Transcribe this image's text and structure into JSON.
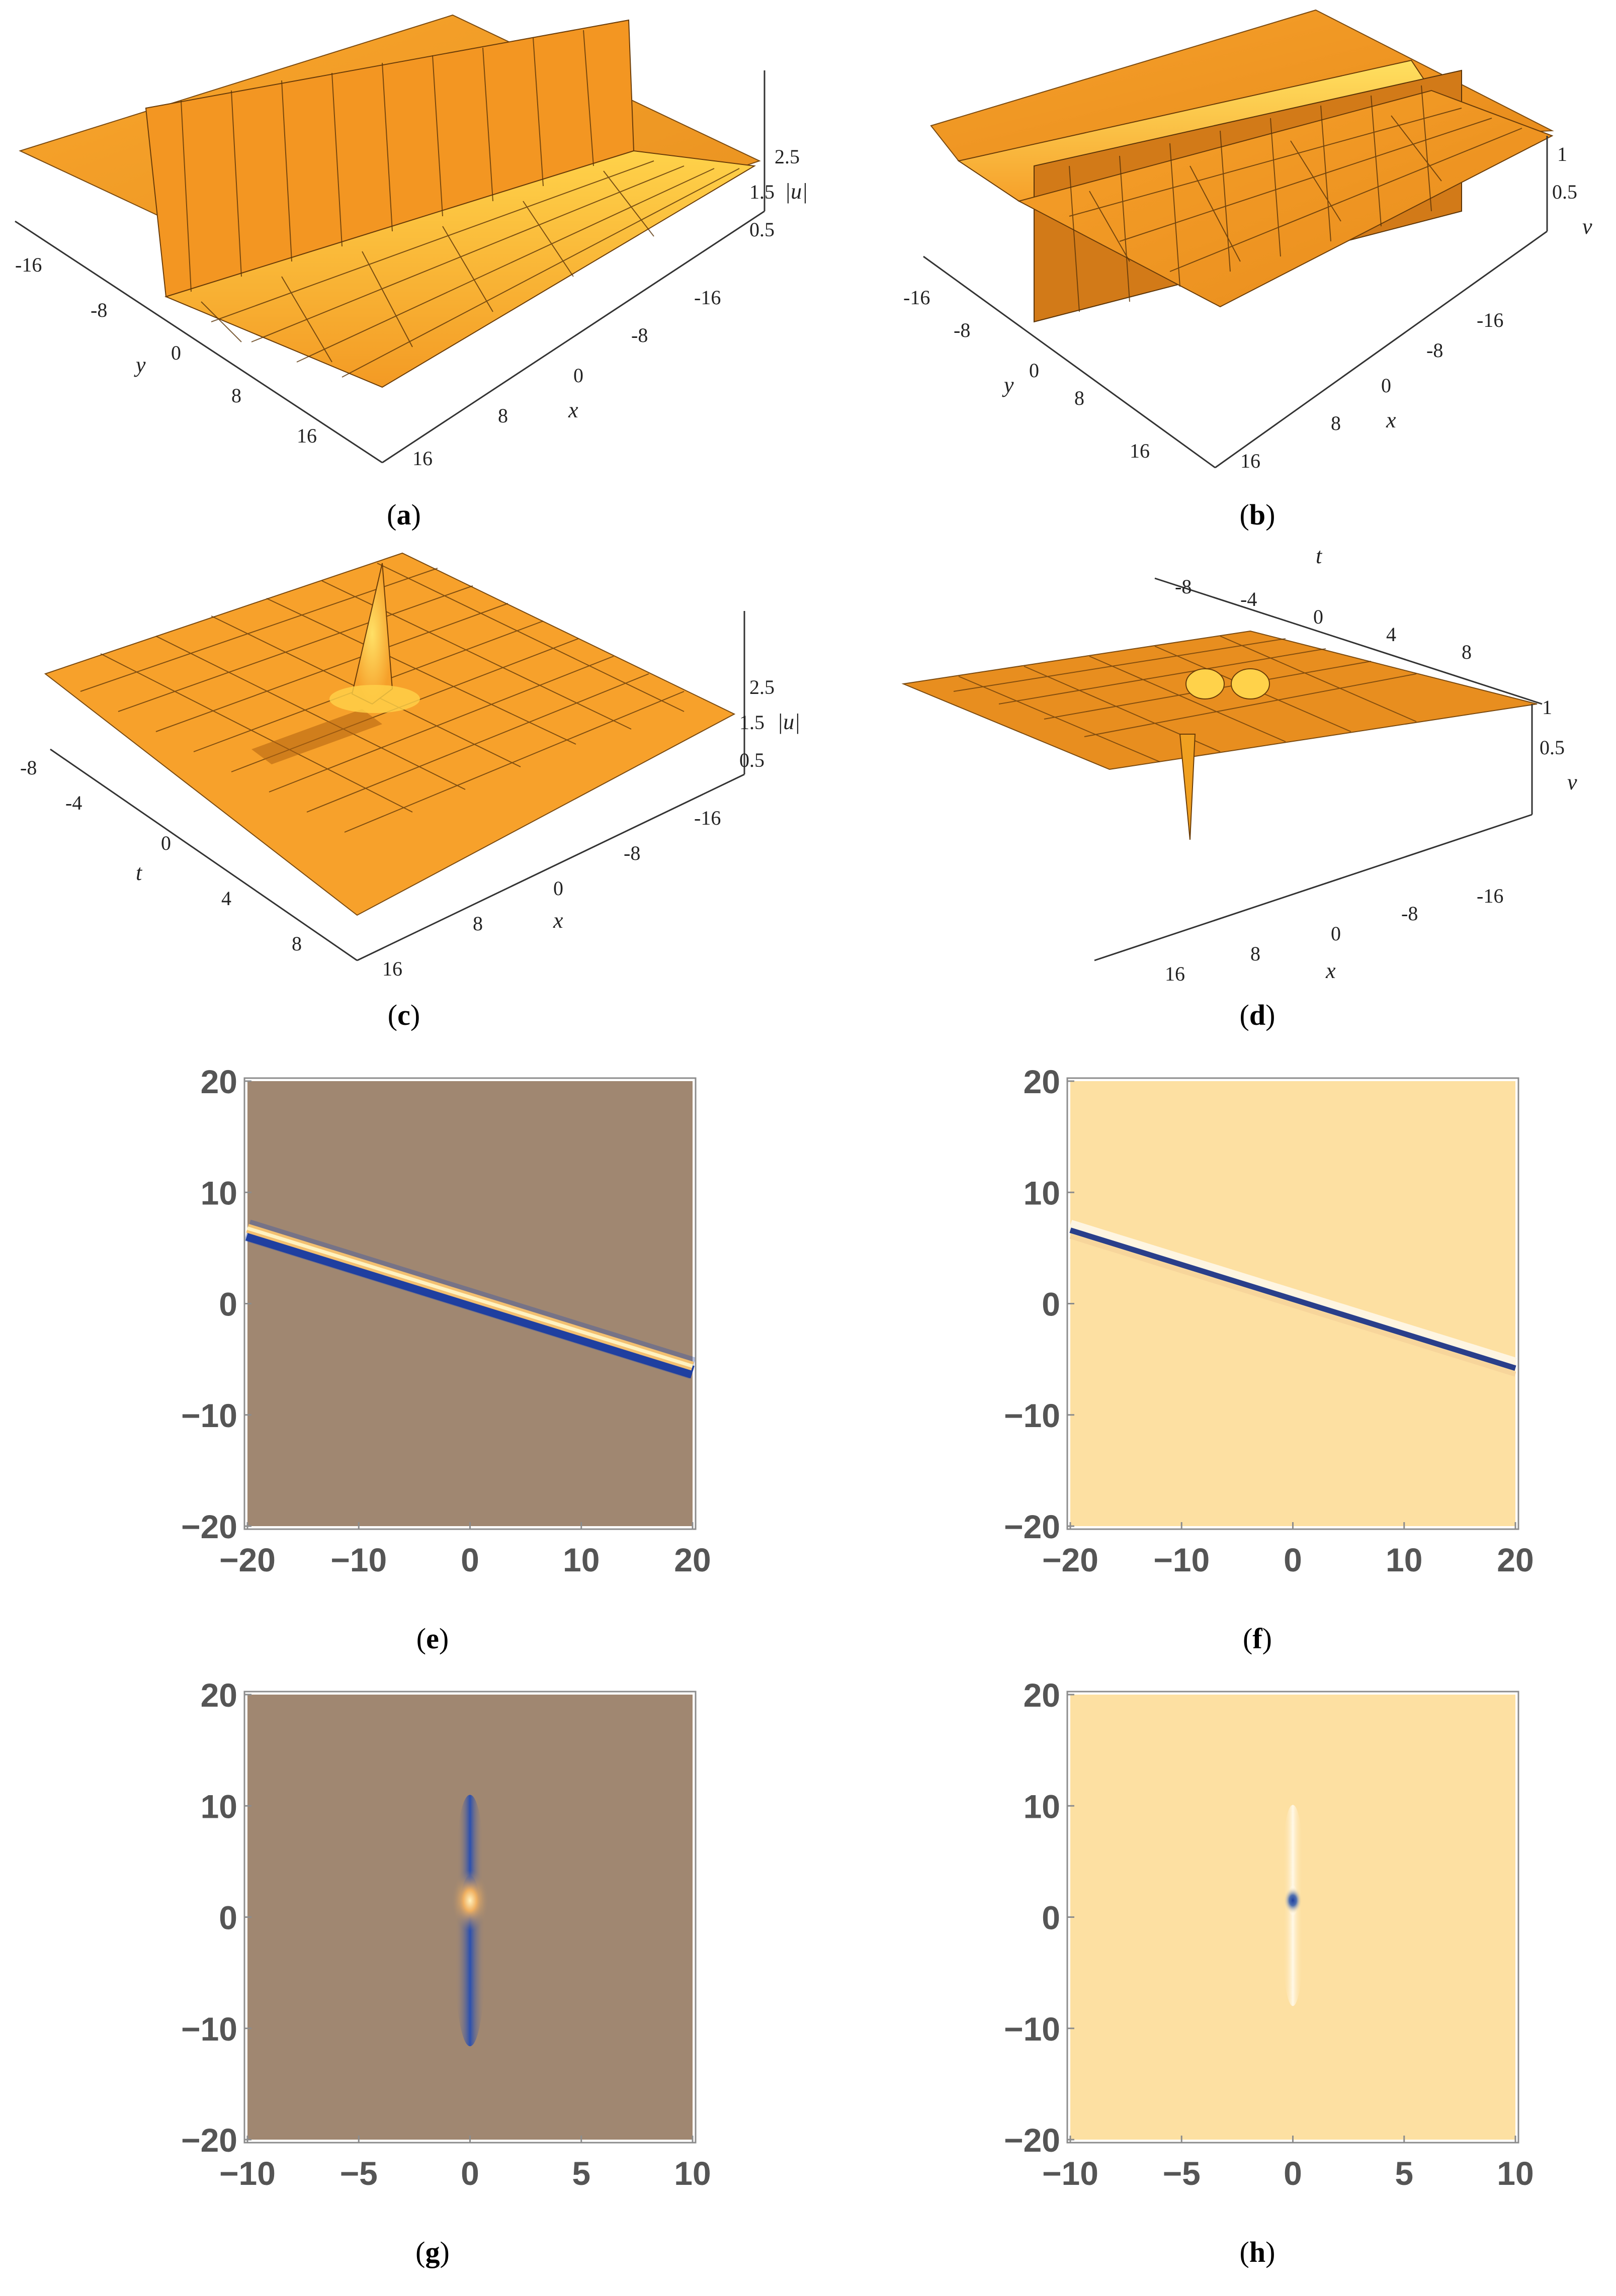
{
  "captions": {
    "a": "a",
    "b": "b",
    "c": "c",
    "d": "d",
    "e": "e",
    "f": "f",
    "g": "g",
    "h": "h"
  },
  "colors": {
    "surface": "#f7a02a",
    "surface_dark": "#d8801a",
    "surface_light": "#ffd54a",
    "density_bg_e": "#a08771",
    "density_bg_f": "#fde0a2",
    "ridge_blue": "#1f3fa0",
    "ridge_bright": "#fff2c0",
    "frame": "#8c8c8c",
    "tick_text": "#555555"
  },
  "chart_data": [
    {
      "id": "a",
      "type": "surface3d",
      "x_ticks": [
        "-16",
        "-8",
        "0",
        "8",
        "16"
      ],
      "y_ticks": [
        "-16",
        "-8",
        "0",
        "8",
        "16"
      ],
      "z_ticks": [
        "2.5",
        "1.5",
        "0.5"
      ],
      "xlabel": "x",
      "ylabel": "y",
      "zlabel": "|u|"
    },
    {
      "id": "b",
      "type": "surface3d",
      "x_ticks": [
        "-16",
        "-8",
        "0",
        "8",
        "16"
      ],
      "y_ticks": [
        "-16",
        "-8",
        "0",
        "8",
        "16"
      ],
      "z_ticks": [
        "1",
        "0.5"
      ],
      "xlabel": "x",
      "ylabel": "y",
      "zlabel": "v"
    },
    {
      "id": "c",
      "type": "surface3d",
      "x_ticks": [
        "-16",
        "-8",
        "0",
        "8",
        "16"
      ],
      "t_ticks": [
        "-8",
        "-4",
        "0",
        "4",
        "8"
      ],
      "z_ticks": [
        "2.5",
        "1.5",
        "0.5"
      ],
      "xlabel": "x",
      "tlabel": "t",
      "zlabel": "|u|"
    },
    {
      "id": "d",
      "type": "surface3d",
      "x_ticks": [
        "-16",
        "-8",
        "0",
        "8",
        "16"
      ],
      "t_ticks": [
        "-8",
        "-4",
        "0",
        "4",
        "8"
      ],
      "z_ticks": [
        "1",
        "0.5"
      ],
      "xlabel": "x",
      "tlabel": "t",
      "zlabel": "v"
    },
    {
      "id": "e",
      "type": "heatmap",
      "xlim": [
        -20,
        20
      ],
      "ylim": [
        -20,
        20
      ],
      "x_ticks": [
        "−20",
        "−10",
        "0",
        "10",
        "20"
      ],
      "y_ticks": [
        "20",
        "10",
        "0",
        "−10",
        "−20"
      ],
      "x_tick_values": [
        -20,
        -10,
        0,
        10,
        20
      ],
      "y_tick_values": [
        20,
        10,
        0,
        -10,
        -20
      ],
      "ridge": {
        "x": [
          -20,
          20
        ],
        "y": [
          6.6,
          -5.8
        ]
      }
    },
    {
      "id": "f",
      "type": "heatmap",
      "xlim": [
        -20,
        20
      ],
      "ylim": [
        -20,
        20
      ],
      "x_ticks": [
        "−20",
        "−10",
        "0",
        "10",
        "20"
      ],
      "y_ticks": [
        "20",
        "10",
        "0",
        "−10",
        "−20"
      ],
      "x_tick_values": [
        -20,
        -10,
        0,
        10,
        20
      ],
      "y_tick_values": [
        20,
        10,
        0,
        -10,
        -20
      ],
      "ridge": {
        "x": [
          -20,
          20
        ],
        "y": [
          6.6,
          -5.8
        ]
      }
    },
    {
      "id": "g",
      "type": "heatmap",
      "xlim": [
        -10,
        10
      ],
      "ylim": [
        -20,
        20
      ],
      "x_ticks": [
        "−10",
        "−5",
        "0",
        "5",
        "10"
      ],
      "y_ticks": [
        "20",
        "10",
        "0",
        "−10",
        "−20"
      ],
      "x_tick_values": [
        -10,
        -5,
        0,
        5,
        10
      ],
      "y_tick_values": [
        20,
        10,
        0,
        -10,
        -20
      ],
      "peak": {
        "x": 0,
        "y": 1.5
      }
    },
    {
      "id": "h",
      "type": "heatmap",
      "xlim": [
        -10,
        10
      ],
      "ylim": [
        -20,
        20
      ],
      "x_ticks": [
        "−10",
        "−5",
        "0",
        "5",
        "10"
      ],
      "y_ticks": [
        "20",
        "10",
        "0",
        "−10",
        "−20"
      ],
      "x_tick_values": [
        -10,
        -5,
        0,
        5,
        10
      ],
      "y_tick_values": [
        20,
        10,
        0,
        -10,
        -20
      ],
      "peak": {
        "x": 0,
        "y": 1.5
      }
    }
  ]
}
